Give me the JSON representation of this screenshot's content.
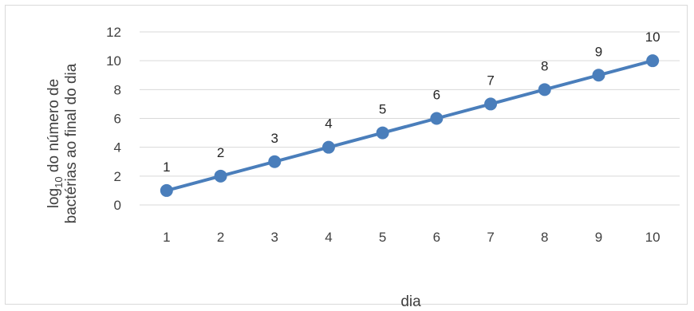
{
  "chart_data": {
    "type": "line",
    "title": "",
    "xlabel": "dia",
    "ylabel_line1_main": "log",
    "ylabel_line1_sub": "10",
    "ylabel_line1_rest": " do número de",
    "ylabel_line2": "bactérias ao final do dia",
    "categories": [
      "1",
      "2",
      "3",
      "4",
      "5",
      "6",
      "7",
      "8",
      "9",
      "10"
    ],
    "values": [
      1,
      2,
      3,
      4,
      5,
      6,
      7,
      8,
      9,
      10
    ],
    "data_labels": [
      "1",
      "2",
      "3",
      "4",
      "5",
      "6",
      "7",
      "8",
      "9",
      "10"
    ],
    "ylim": [
      0,
      12
    ],
    "yticks": [
      "0",
      "2",
      "4",
      "6",
      "8",
      "10",
      "12"
    ],
    "grid": true,
    "legend": "none",
    "series_color": "#4a7ebb",
    "grid_color": "#d9d9d9"
  }
}
